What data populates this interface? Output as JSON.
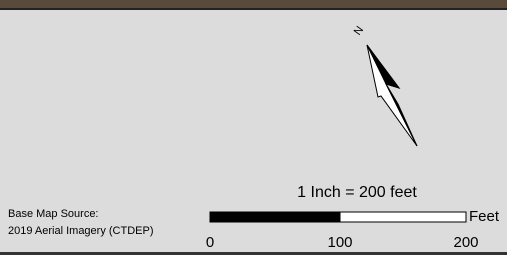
{
  "north_arrow": {
    "label": "N"
  },
  "scale": {
    "statement": "1 Inch = 200 feet",
    "unit": "Feet",
    "ticks": [
      "0",
      "100",
      "200"
    ]
  },
  "source": {
    "line1": "Base Map Source:",
    "line2": "2019 Aerial Imagery (CTDEP)"
  }
}
